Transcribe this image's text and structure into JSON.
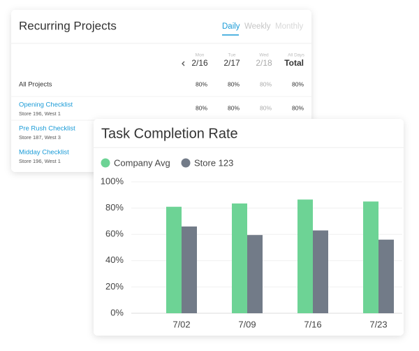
{
  "recurring_projects": {
    "title": "Recurring Projects",
    "tabs": [
      "Daily",
      "Weekly",
      "Monthly"
    ],
    "columns": [
      {
        "day": "Mon",
        "date": "2/16"
      },
      {
        "day": "Tue",
        "date": "2/17"
      },
      {
        "day": "Wed",
        "date": "2/18"
      },
      {
        "day": "All Days",
        "date": "Total"
      }
    ],
    "rows": [
      {
        "name": "All Projects",
        "values": [
          "80%",
          "80%",
          "80%",
          "80%"
        ]
      },
      {
        "name": "Opening Checklist",
        "store": "Store 196, West 1",
        "values": [
          "80%",
          "80%",
          "80%",
          "80%"
        ]
      },
      {
        "name": "Pre Rush Checklist",
        "store": "Store 187, West 3"
      },
      {
        "name": "Midday Checklist",
        "store": "Store 196, West 1"
      }
    ]
  },
  "chart_data": {
    "type": "bar",
    "title": "Task Completion Rate",
    "categories": [
      "7/02",
      "7/09",
      "7/16",
      "7/23"
    ],
    "series": [
      {
        "name": "Company Avg",
        "color": "#6dd395",
        "values": [
          81,
          83.5,
          86.5,
          85
        ]
      },
      {
        "name": "Store 123",
        "color": "#727b88",
        "values": [
          66,
          59.5,
          63,
          56
        ]
      }
    ],
    "ylim": [
      0,
      100
    ],
    "yticks": [
      {
        "value": 0,
        "label": "0%"
      },
      {
        "value": 20,
        "label": "20%"
      },
      {
        "value": 40,
        "label": "40%"
      },
      {
        "value": 60,
        "label": "60%"
      },
      {
        "value": 80,
        "label": "80%"
      },
      {
        "value": 100,
        "label": "100%"
      }
    ],
    "grid": true
  }
}
